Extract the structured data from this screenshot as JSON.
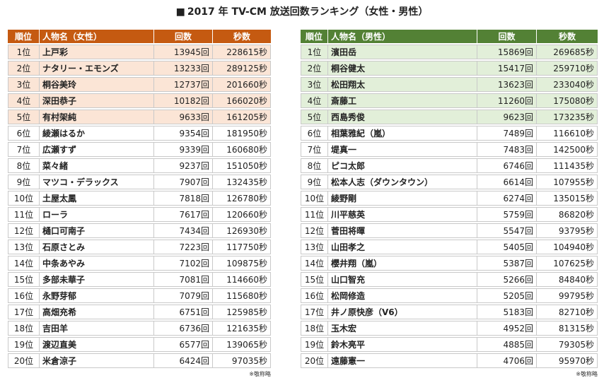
{
  "title": "2017 年 TV-CM 放送回数ランキング（女性・男性）",
  "title_mark": "■",
  "female": {
    "headers": {
      "rank": "順位",
      "name": "人物名（女性）",
      "count": "回数",
      "seconds": "秒数"
    },
    "rows": [
      {
        "rank": "1位",
        "name": "上戸彩",
        "count": "13945回",
        "seconds": "228615秒"
      },
      {
        "rank": "2位",
        "name": "ナタリー・エモンズ",
        "count": "13233回",
        "seconds": "289125秒"
      },
      {
        "rank": "3位",
        "name": "桐谷美玲",
        "count": "12737回",
        "seconds": "201660秒"
      },
      {
        "rank": "4位",
        "name": "深田恭子",
        "count": "10182回",
        "seconds": "166020秒"
      },
      {
        "rank": "5位",
        "name": "有村架純",
        "count": "9633回",
        "seconds": "161205秒"
      },
      {
        "rank": "6位",
        "name": "綾瀬はるか",
        "count": "9354回",
        "seconds": "181950秒"
      },
      {
        "rank": "7位",
        "name": "広瀬すず",
        "count": "9339回",
        "seconds": "160680秒"
      },
      {
        "rank": "8位",
        "name": "菜々緒",
        "count": "9237回",
        "seconds": "151050秒"
      },
      {
        "rank": "9位",
        "name": "マツコ・デラックス",
        "count": "7907回",
        "seconds": "132435秒"
      },
      {
        "rank": "10位",
        "name": "土屋太鳳",
        "count": "7818回",
        "seconds": "126780秒"
      },
      {
        "rank": "11位",
        "name": "ローラ",
        "count": "7617回",
        "seconds": "120660秒"
      },
      {
        "rank": "12位",
        "name": "樋口可南子",
        "count": "7434回",
        "seconds": "126930秒"
      },
      {
        "rank": "13位",
        "name": "石原さとみ",
        "count": "7223回",
        "seconds": "117750秒"
      },
      {
        "rank": "14位",
        "name": "中条あやみ",
        "count": "7102回",
        "seconds": "109875秒"
      },
      {
        "rank": "15位",
        "name": "多部未華子",
        "count": "7081回",
        "seconds": "114660秒"
      },
      {
        "rank": "16位",
        "name": "永野芽郁",
        "count": "7079回",
        "seconds": "115680秒"
      },
      {
        "rank": "17位",
        "name": "高畑充希",
        "count": "6751回",
        "seconds": "125985秒"
      },
      {
        "rank": "18位",
        "name": "吉田羊",
        "count": "6736回",
        "seconds": "121635秒"
      },
      {
        "rank": "19位",
        "name": "渡辺直美",
        "count": "6577回",
        "seconds": "139065秒"
      },
      {
        "rank": "20位",
        "name": "米倉涼子",
        "count": "6424回",
        "seconds": "97035秒"
      }
    ],
    "note": "※敬称略"
  },
  "male": {
    "headers": {
      "rank": "順位",
      "name": "人物名（男性）",
      "count": "回数",
      "seconds": "秒数"
    },
    "rows": [
      {
        "rank": "1位",
        "name": "濱田岳",
        "count": "15869回",
        "seconds": "269685秒"
      },
      {
        "rank": "2位",
        "name": "桐谷健太",
        "count": "15417回",
        "seconds": "259710秒"
      },
      {
        "rank": "3位",
        "name": "松田翔太",
        "count": "13623回",
        "seconds": "233040秒"
      },
      {
        "rank": "4位",
        "name": "斎藤工",
        "count": "11260回",
        "seconds": "175080秒"
      },
      {
        "rank": "5位",
        "name": "西島秀俊",
        "count": "9623回",
        "seconds": "173235秒"
      },
      {
        "rank": "6位",
        "name": "相葉雅紀（嵐）",
        "count": "7489回",
        "seconds": "116610秒"
      },
      {
        "rank": "7位",
        "name": "堤真一",
        "count": "7483回",
        "seconds": "142500秒"
      },
      {
        "rank": "8位",
        "name": "ピコ太郎",
        "count": "6746回",
        "seconds": "111435秒"
      },
      {
        "rank": "9位",
        "name": "松本人志（ダウンタウン）",
        "count": "6614回",
        "seconds": "107955秒"
      },
      {
        "rank": "10位",
        "name": "綾野剛",
        "count": "6274回",
        "seconds": "135015秒"
      },
      {
        "rank": "11位",
        "name": "川平慈英",
        "count": "5759回",
        "seconds": "86820秒"
      },
      {
        "rank": "12位",
        "name": "菅田将暉",
        "count": "5547回",
        "seconds": "93795秒"
      },
      {
        "rank": "13位",
        "name": "山田孝之",
        "count": "5405回",
        "seconds": "104940秒"
      },
      {
        "rank": "14位",
        "name": "櫻井翔（嵐）",
        "count": "5387回",
        "seconds": "107625秒"
      },
      {
        "rank": "15位",
        "name": "山口智充",
        "count": "5266回",
        "seconds": "84840秒"
      },
      {
        "rank": "16位",
        "name": "松岡修造",
        "count": "5205回",
        "seconds": "99795秒"
      },
      {
        "rank": "17位",
        "name": "井ノ原快彦（V6）",
        "count": "5183回",
        "seconds": "82710秒"
      },
      {
        "rank": "18位",
        "name": "玉木宏",
        "count": "4952回",
        "seconds": "81315秒"
      },
      {
        "rank": "19位",
        "name": "鈴木亮平",
        "count": "4885回",
        "seconds": "79305秒"
      },
      {
        "rank": "20位",
        "name": "遠藤憲一",
        "count": "4706回",
        "seconds": "95970秒"
      }
    ],
    "note": "※敬称略"
  },
  "colors": {
    "female_header": "#c55a11",
    "female_top_rows": "#fbe5d6",
    "male_header": "#538135",
    "male_top_rows": "#e2efd9"
  }
}
